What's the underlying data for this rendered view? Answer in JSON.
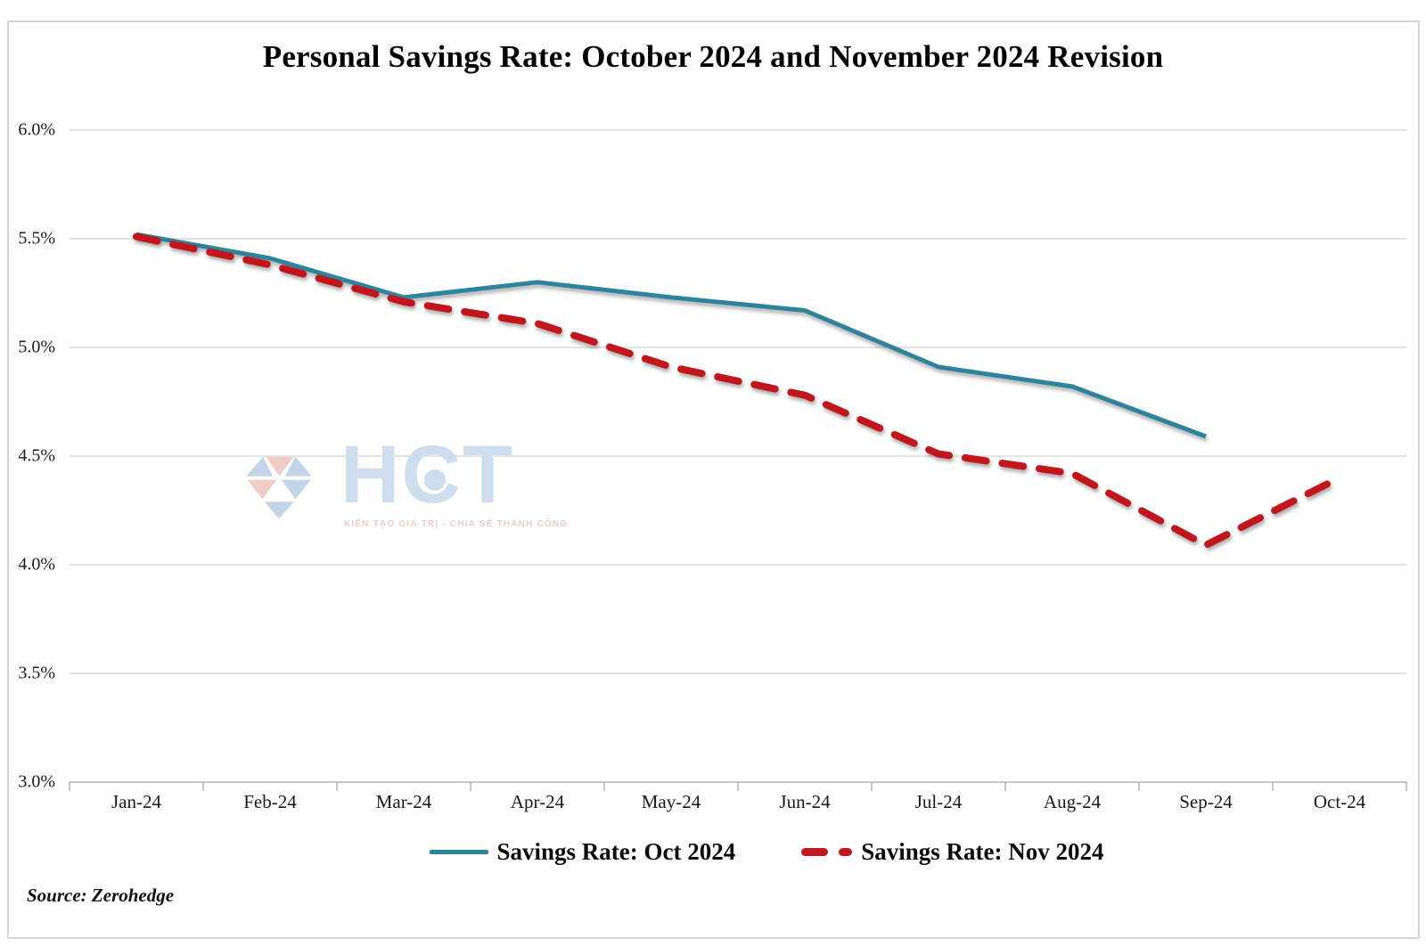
{
  "page": {
    "source": "Source: Zerohedge"
  },
  "watermark": {
    "brand": "HCT",
    "tagline": "KIẾN TẠO GIÁ TRỊ - CHIA SẺ THÀNH CÔNG",
    "brand_color": "#cddded",
    "gem_blue": "#c3d4e8",
    "gem_pink": "#f0ccc6"
  },
  "chart_data": {
    "type": "line",
    "title": "Personal Savings Rate: October 2024 and November 2024 Revision",
    "categories": [
      "Jan-24",
      "Feb-24",
      "Mar-24",
      "Apr-24",
      "May-24",
      "Jun-24",
      "Jul-24",
      "Aug-24",
      "Sep-24",
      "Oct-24"
    ],
    "series": [
      {
        "name": "Savings Rate: Oct 2024",
        "color": "#2F839C",
        "style": "solid",
        "line_width": 5,
        "values": [
          5.52,
          5.41,
          5.23,
          5.3,
          5.23,
          5.17,
          4.91,
          4.82,
          4.59,
          null
        ]
      },
      {
        "name": "Savings Rate: Nov 2024",
        "color": "#C0181E",
        "style": "dashed",
        "line_width": 8,
        "values": [
          5.51,
          5.38,
          5.21,
          5.11,
          4.91,
          4.78,
          4.51,
          4.42,
          4.09,
          4.4
        ]
      }
    ],
    "ylim": [
      3.0,
      6.0
    ],
    "y_ticks": [
      "3.0%",
      "3.5%",
      "4.0%",
      "4.5%",
      "5.0%",
      "5.5%",
      "6.0%"
    ],
    "grid": "horizontal",
    "gridline_color": "#dadada",
    "axis_color": "#b3b3b3",
    "legend_position": "bottom"
  }
}
